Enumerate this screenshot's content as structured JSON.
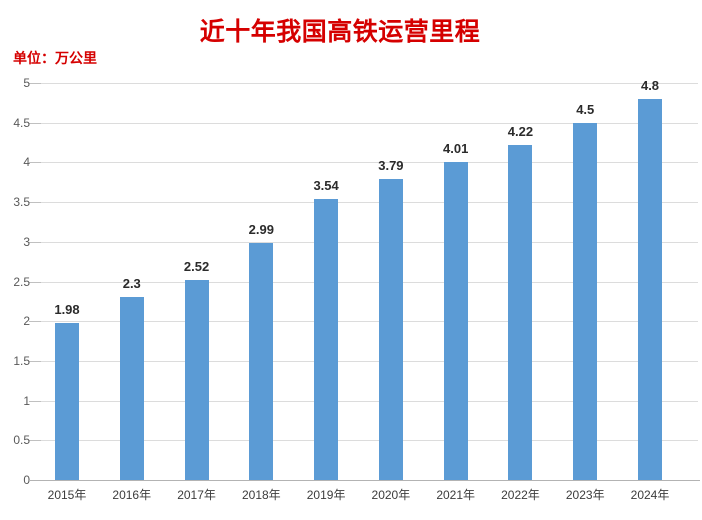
{
  "header": {
    "title": "近十年我国高铁运营里程",
    "title_color": "#d50000",
    "unit_label": "单位：万公里",
    "unit_color": "#d50000"
  },
  "chart_data": {
    "type": "bar",
    "title": "近十年我国高铁运营里程",
    "subtitle": "单位：万公里",
    "categories": [
      "2015年",
      "2016年",
      "2017年",
      "2018年",
      "2019年",
      "2020年",
      "2021年",
      "2022年",
      "2023年",
      "2024年"
    ],
    "values": [
      1.98,
      2.3,
      2.52,
      2.99,
      3.54,
      3.79,
      4.01,
      4.22,
      4.5,
      4.8
    ],
    "value_labels": [
      "1.98",
      "2.3",
      "2.52",
      "2.99",
      "3.54",
      "3.79",
      "4.01",
      "4.22",
      "4.5",
      "4.8"
    ],
    "xlabel": "",
    "ylabel": "单位：万公里",
    "ylim": [
      0,
      5
    ],
    "ytick_step": 0.5,
    "ytick_labels": [
      "0",
      "0.5",
      "1",
      "1.5",
      "2",
      "2.5",
      "3",
      "3.5",
      "4",
      "4.5",
      "5"
    ],
    "grid": true,
    "legend": "none",
    "colors": {
      "bar": "#5b9bd5",
      "gridline": "#dcdcdc",
      "axis_line": "#b3b3b3",
      "tick_mark": "#c0c0c0",
      "ytick_label": "#595959",
      "xtick_label": "#3c3c3c",
      "value_label": "#2b2b2b",
      "background": "#ffffff"
    }
  }
}
